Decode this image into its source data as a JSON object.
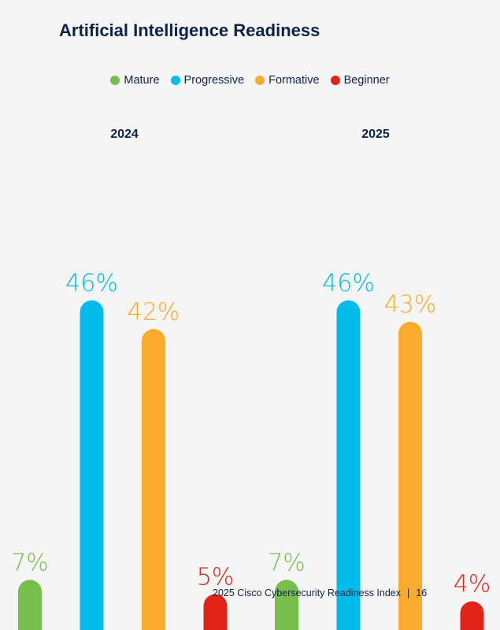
{
  "chart_data": {
    "type": "bar",
    "title": "Artificial Intelligence Readiness",
    "legend": "top-center",
    "categories": [
      "2024",
      "2025"
    ],
    "series": [
      {
        "name": "Mature",
        "color": "#78be4a",
        "values": [
          7,
          7
        ],
        "labels": [
          "7%",
          "7%"
        ]
      },
      {
        "name": "Progressive",
        "color": "#00bceb",
        "values": [
          46,
          46
        ],
        "labels": [
          "46%",
          "46%"
        ]
      },
      {
        "name": "Formative",
        "color": "#fbab2c",
        "values": [
          42,
          43
        ],
        "labels": [
          "42%",
          "43%"
        ]
      },
      {
        "name": "Beginner",
        "color": "#e2231a",
        "values": [
          5,
          4
        ],
        "labels": [
          "5%",
          "4%"
        ]
      }
    ]
  },
  "footer": {
    "report": "2025 Cisco Cybersecurity Readiness Index",
    "separator": "|",
    "page": "16"
  }
}
